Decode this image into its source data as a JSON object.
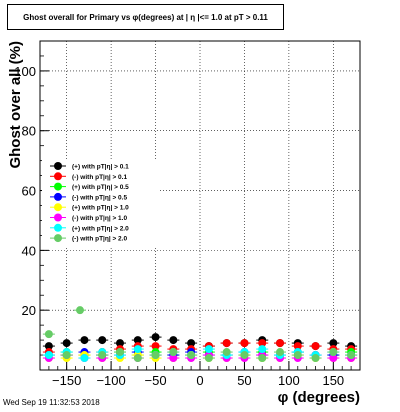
{
  "footer": {
    "timestamp": "Wed Sep 19 11:32:53 2018"
  },
  "chart_data": {
    "type": "scatter",
    "title": "Ghost overall for Primary vs φ(degrees) at | η |<= 1.0 at pT > 0.11",
    "xlabel": "φ (degrees)",
    "ylabel": "Ghost over all (%)",
    "xlim": [
      -180,
      180
    ],
    "ylim": [
      0,
      110
    ],
    "xticks": [
      -150,
      -100,
      -50,
      0,
      50,
      100,
      150
    ],
    "yticks": [
      20,
      40,
      60,
      80,
      100
    ],
    "grid": true,
    "legend_position": "left",
    "series": [
      {
        "name": "(+) with pT|η| > 0.1",
        "color": "#000000",
        "marker": "circle",
        "x": [
          -170,
          -150,
          -130,
          -110,
          -90,
          -70,
          -50,
          -30,
          -10,
          10,
          30,
          50,
          70,
          90,
          110,
          130,
          150,
          170
        ],
        "y": [
          8,
          9,
          10,
          10,
          9,
          10,
          11,
          10,
          9,
          8,
          9,
          9,
          10,
          9,
          9,
          8,
          9,
          8
        ]
      },
      {
        "name": "(-) with pT|η| > 0.1",
        "color": "#ff0000",
        "marker": "circle",
        "x": [
          -170,
          -150,
          -130,
          -110,
          -90,
          -70,
          -50,
          -30,
          -10,
          10,
          30,
          50,
          70,
          90,
          110,
          130,
          150,
          170
        ],
        "y": [
          6,
          5,
          5,
          6,
          7,
          8,
          8,
          7,
          7,
          8,
          9,
          9,
          9,
          9,
          8,
          8,
          7,
          7
        ]
      },
      {
        "name": "(+) with pT|η| > 0.5",
        "color": "#00ff00",
        "marker": "circle",
        "x": [
          -170,
          -150,
          -130,
          -110,
          -90,
          -70,
          -50,
          -30,
          -10,
          10,
          30,
          50,
          70,
          90,
          110,
          130,
          150,
          170
        ],
        "y": [
          5,
          6,
          5,
          5,
          6,
          5,
          6,
          5,
          5,
          6,
          5,
          5,
          6,
          5,
          6,
          5,
          5,
          6
        ]
      },
      {
        "name": "(-) with pT|η| > 0.5",
        "color": "#0000ff",
        "marker": "circle",
        "x": [
          -170,
          -150,
          -130,
          -110,
          -90,
          -70,
          -50,
          -30,
          -10,
          10,
          30,
          50,
          70,
          90,
          110,
          130,
          150,
          170
        ],
        "y": [
          5,
          5,
          6,
          5,
          5,
          6,
          5,
          5,
          6,
          5,
          5,
          6,
          5,
          5,
          6,
          5,
          5,
          5
        ]
      },
      {
        "name": "(+) with pT|η| > 1.0",
        "color": "#ffff00",
        "marker": "circle",
        "x": [
          -170,
          -150,
          -130,
          -110,
          -90,
          -70,
          -50,
          -30,
          -10,
          10,
          30,
          50,
          70,
          90,
          110,
          130,
          150,
          170
        ],
        "y": [
          4,
          4,
          5,
          4,
          4,
          5,
          4,
          4,
          5,
          4,
          4,
          5,
          4,
          4,
          5,
          4,
          4,
          4
        ]
      },
      {
        "name": "(-) with pT|η| > 1.0",
        "color": "#ff00ff",
        "marker": "circle",
        "x": [
          -170,
          -150,
          -130,
          -110,
          -90,
          -70,
          -50,
          -30,
          -10,
          10,
          30,
          50,
          70,
          90,
          110,
          130,
          150,
          170
        ],
        "y": [
          4,
          5,
          4,
          4,
          5,
          4,
          5,
          4,
          4,
          5,
          4,
          4,
          5,
          4,
          4,
          5,
          4,
          4
        ]
      },
      {
        "name": "(+) with pT|η| > 2.0",
        "color": "#00ffff",
        "marker": "circle",
        "x": [
          -170,
          -150,
          -130,
          -110,
          -90,
          -70,
          -50,
          -30,
          -10,
          10,
          30,
          50,
          70,
          90,
          110,
          130,
          150,
          170
        ],
        "y": [
          5,
          6,
          4,
          6,
          5,
          7,
          5,
          6,
          5,
          7,
          5,
          6,
          7,
          5,
          6,
          5,
          6,
          5
        ]
      },
      {
        "name": "(-) with pT|η| > 2.0",
        "color": "#66cc66",
        "marker": "circle",
        "x": [
          -170,
          -150,
          -135,
          -110,
          -90,
          -70,
          -50,
          -30,
          -10,
          10,
          30,
          50,
          70,
          90,
          110,
          130,
          150,
          170
        ],
        "y": [
          12,
          5,
          20,
          5,
          6,
          4,
          5,
          6,
          5,
          4,
          6,
          5,
          4,
          6,
          5,
          4,
          6,
          5
        ]
      }
    ]
  }
}
